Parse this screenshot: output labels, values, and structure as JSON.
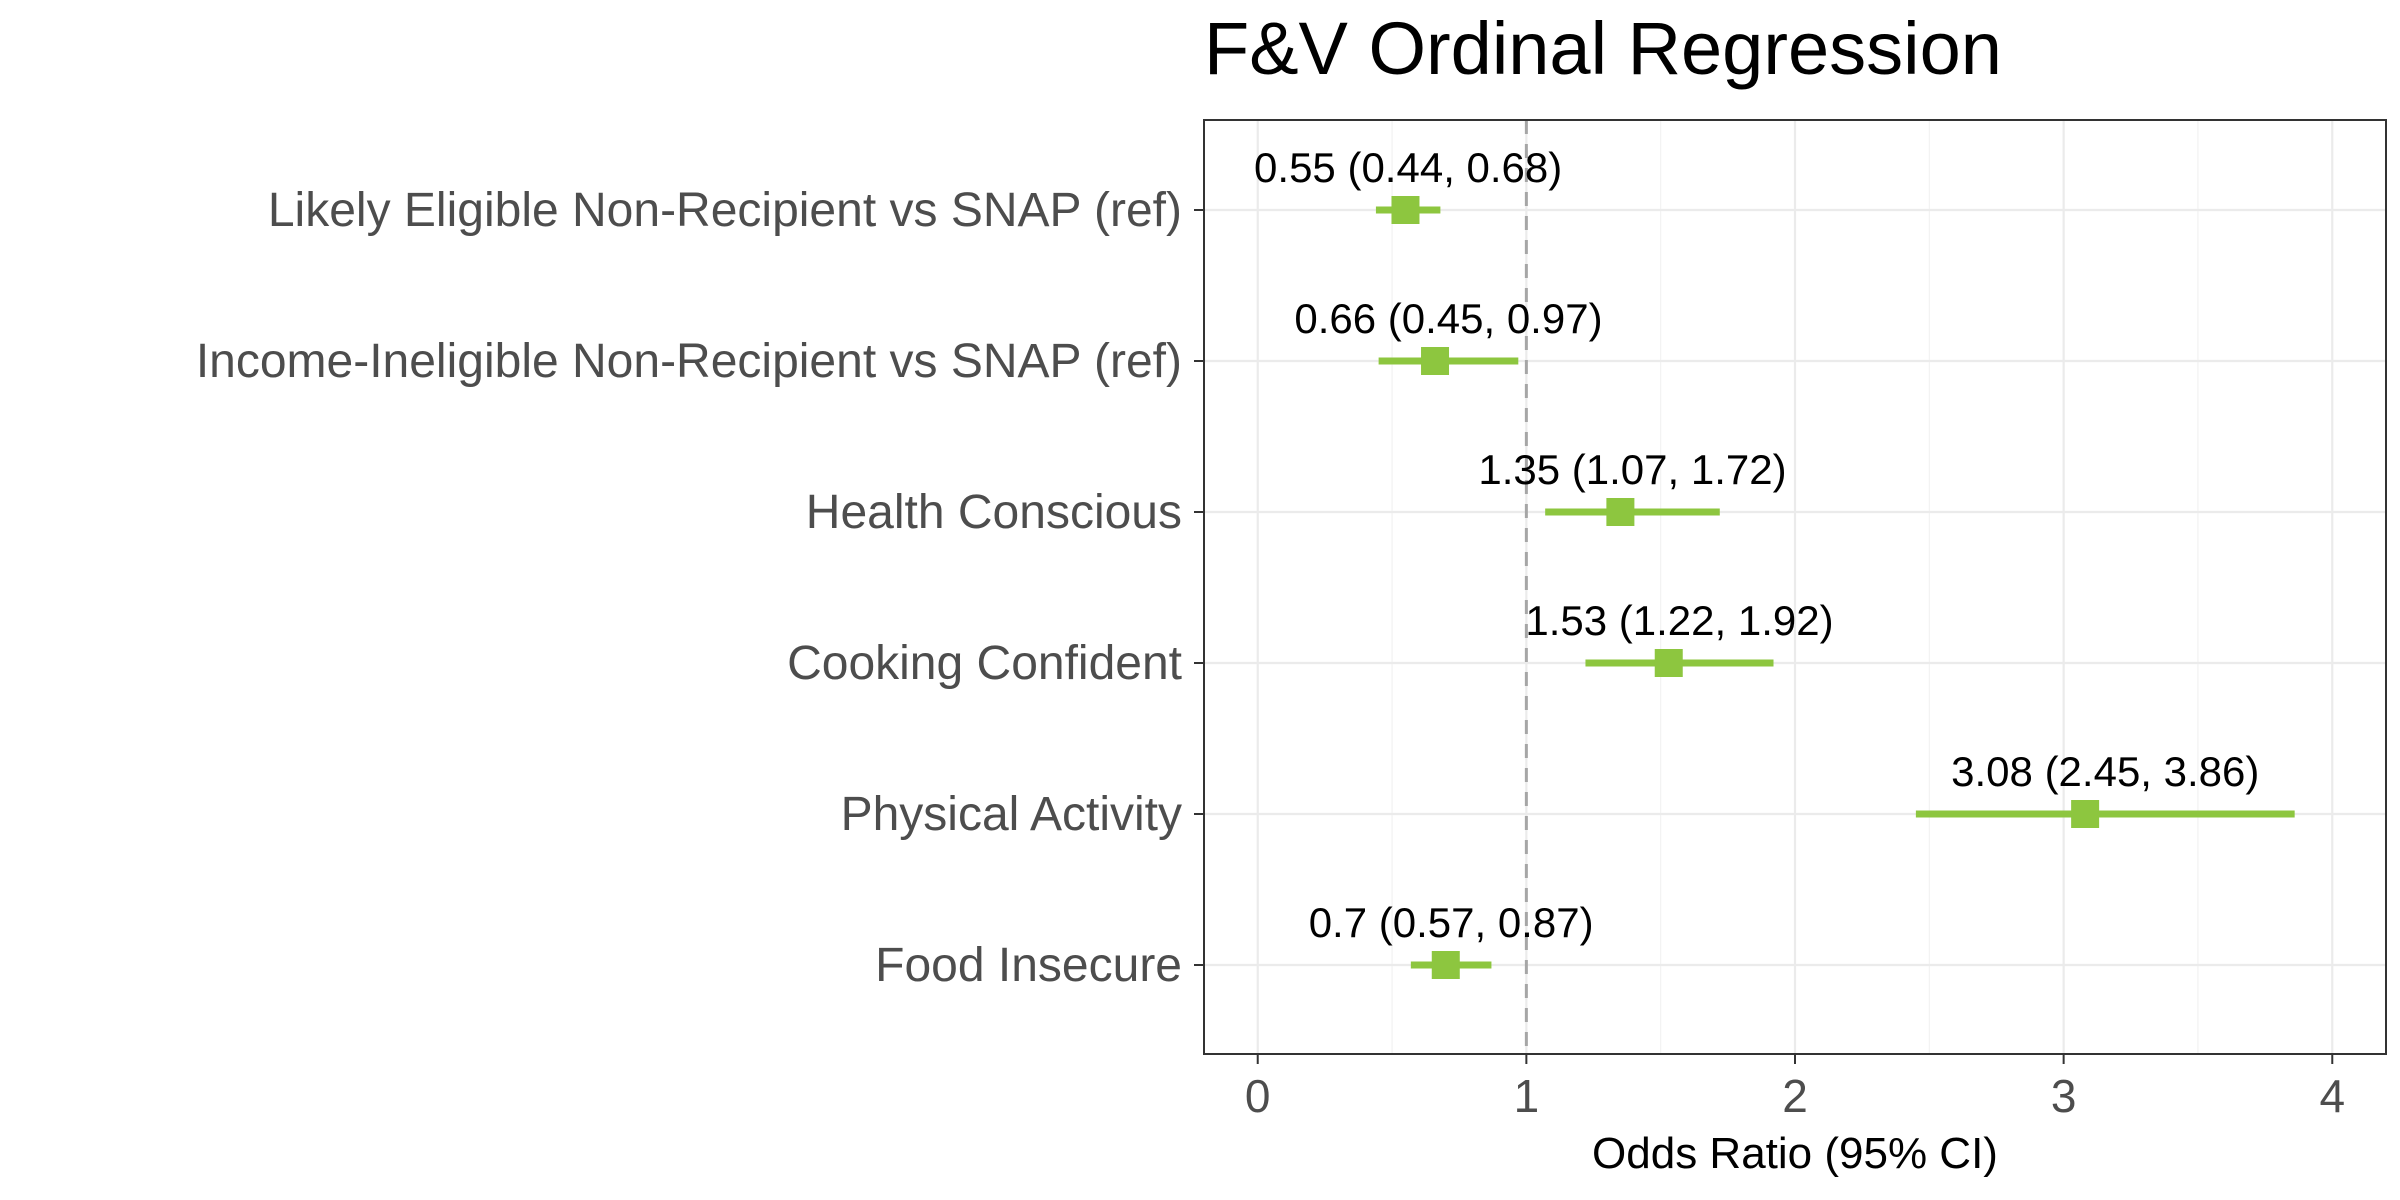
{
  "chart_data": {
    "type": "forest",
    "title": "F&V Ordinal Regression",
    "xlabel": "Odds Ratio (95% CI)",
    "ylabel": "",
    "xlim": [
      -0.2,
      4.2
    ],
    "xticks": [
      0,
      1,
      2,
      3,
      4
    ],
    "xtick_labels": [
      "0",
      "1",
      "2",
      "3",
      "4"
    ],
    "reference_line": 1,
    "grid": true,
    "legend": "none",
    "color": "#8DC63F",
    "rows": [
      {
        "label": "Likely Eligible Non-Recipient vs SNAP (ref)",
        "or": 0.55,
        "lo": 0.44,
        "hi": 0.68,
        "text": "0.55 (0.44, 0.68)"
      },
      {
        "label": "Income-Ineligible Non-Recipient vs SNAP (ref)",
        "or": 0.66,
        "lo": 0.45,
        "hi": 0.97,
        "text": "0.66 (0.45, 0.97)"
      },
      {
        "label": "Health Conscious",
        "or": 1.35,
        "lo": 1.07,
        "hi": 1.72,
        "text": "1.35 (1.07, 1.72)"
      },
      {
        "label": "Cooking Confident",
        "or": 1.53,
        "lo": 1.22,
        "hi": 1.92,
        "text": "1.53 (1.22, 1.92)"
      },
      {
        "label": "Physical Activity",
        "or": 3.08,
        "lo": 2.45,
        "hi": 3.86,
        "text": "3.08 (2.45, 3.86)"
      },
      {
        "label": "Food Insecure",
        "or": 0.7,
        "lo": 0.57,
        "hi": 0.87,
        "text": "0.7 (0.57, 0.87)"
      }
    ]
  }
}
